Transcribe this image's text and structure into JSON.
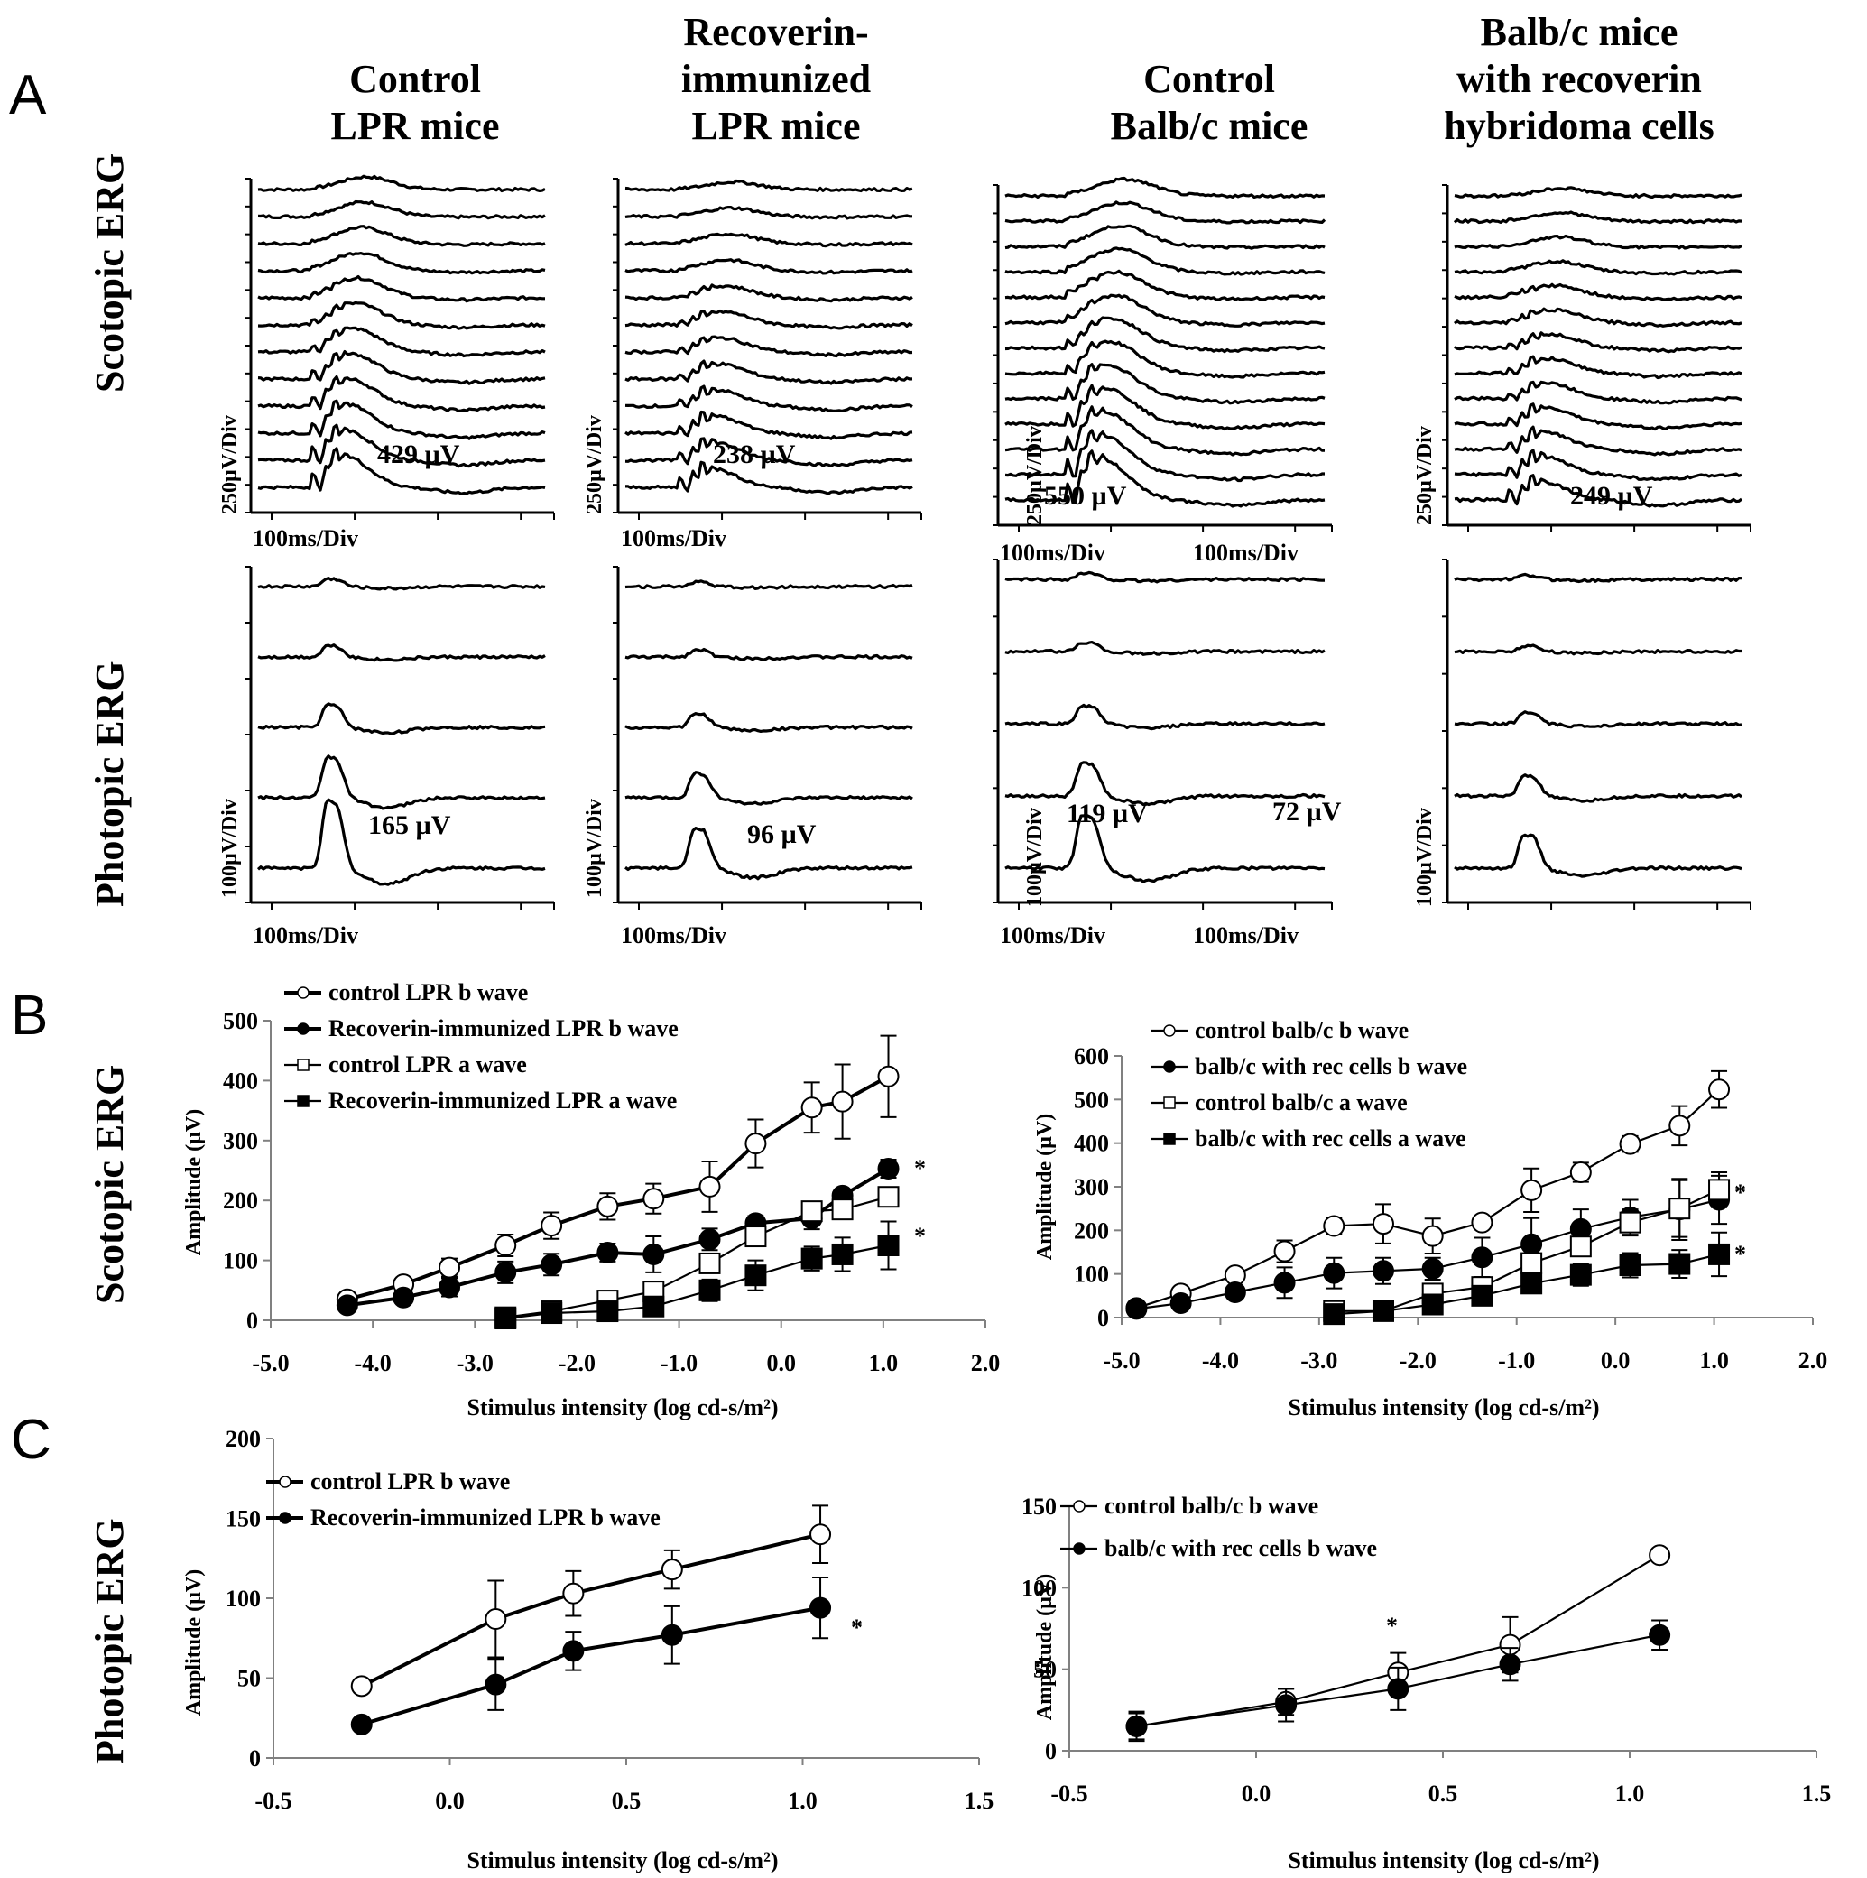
{
  "panels": {
    "A": "A",
    "B": "B",
    "C": "C"
  },
  "row_labels": {
    "scotopic": "Scotopic ERG",
    "photopic": "Photopic ERG"
  },
  "columns": [
    {
      "title_lines": [
        "Control",
        "LPR mice"
      ],
      "scotopic_amp": "429 µV",
      "photopic_amp": "165 µV"
    },
    {
      "title_lines": [
        "Recoverin-",
        "immunized",
        "LPR mice"
      ],
      "scotopic_amp": "238 µV",
      "photopic_amp": "96 µV"
    },
    {
      "title_lines": [
        "Control",
        "Balb/c mice"
      ],
      "scotopic_amp": "550 µV",
      "photopic_amp": "119 µV"
    },
    {
      "title_lines": [
        "Balb/c mice",
        "with recoverin",
        "hybridoma cells"
      ],
      "scotopic_amp": "249 µV",
      "photopic_amp": "72 µV"
    }
  ],
  "scales": {
    "scotopic_v": "250µV/Div",
    "photopic_v": "100µV/Div",
    "time": "100ms/Div"
  },
  "colors": {
    "ink": "#000000",
    "axis": "#808080",
    "bg": "#ffffff"
  },
  "chart_data": [
    {
      "id": "B-left",
      "type": "line",
      "title": "",
      "xlabel": "Stimulus intensity (log cd-s/m²)",
      "ylabel": "Amplitude (µV)",
      "xlim": [
        -5.0,
        2.0
      ],
      "ylim": [
        0,
        500
      ],
      "xticks": [
        "-5.0",
        "-4.0",
        "-3.0",
        "-2.0",
        "-1.0",
        "0.0",
        "1.0",
        "2.0"
      ],
      "yticks": [
        "0",
        "100",
        "200",
        "300",
        "400",
        "500"
      ],
      "legend_position": "top-left",
      "annotations": [
        "*",
        "*"
      ],
      "series": [
        {
          "name": "control LPR b wave",
          "marker": "open-circle",
          "weight": "thick",
          "x": [
            -4.25,
            -3.7,
            -3.25,
            -2.7,
            -2.25,
            -1.7,
            -1.25,
            -0.7,
            -0.25,
            0.3,
            0.6,
            1.05
          ],
          "y": [
            35,
            60,
            88,
            125,
            158,
            190,
            203,
            223,
            295,
            355,
            365,
            407
          ],
          "err": [
            5,
            6,
            15,
            18,
            22,
            22,
            25,
            42,
            40,
            42,
            62,
            68
          ]
        },
        {
          "name": "Recoverin-immunized LPR b wave",
          "marker": "filled-circle",
          "weight": "thick",
          "x": [
            -4.25,
            -3.7,
            -3.25,
            -2.7,
            -2.25,
            -1.7,
            -1.25,
            -0.7,
            -0.25,
            0.3,
            0.6,
            1.05
          ],
          "y": [
            25,
            38,
            55,
            80,
            93,
            113,
            110,
            135,
            162,
            170,
            208,
            253
          ],
          "err": [
            5,
            5,
            15,
            18,
            18,
            15,
            30,
            18,
            12,
            18,
            10,
            15
          ]
        },
        {
          "name": "control LPR a wave",
          "marker": "open-square",
          "weight": "thin",
          "x": [
            -2.7,
            -2.25,
            -1.7,
            -1.25,
            -0.7,
            -0.25,
            0.3,
            0.6,
            1.05
          ],
          "y": [
            5,
            15,
            33,
            48,
            95,
            140,
            182,
            185,
            206
          ],
          "err": [
            3,
            3,
            5,
            6,
            12,
            15,
            10,
            10,
            10
          ]
        },
        {
          "name": "Recoverin-immunized LPR a wave",
          "marker": "filled-square",
          "weight": "thin",
          "x": [
            -2.7,
            -2.25,
            -1.7,
            -1.25,
            -0.7,
            -0.25,
            0.3,
            0.6,
            1.05
          ],
          "y": [
            3,
            12,
            15,
            23,
            50,
            75,
            103,
            110,
            125
          ],
          "err": [
            3,
            3,
            5,
            8,
            18,
            25,
            20,
            28,
            40
          ]
        }
      ]
    },
    {
      "id": "B-right",
      "type": "line",
      "title": "",
      "xlabel": "Stimulus intensity (log cd-s/m²)",
      "ylabel": "Amplitude (µV)",
      "xlim": [
        -5.0,
        2.0
      ],
      "ylim": [
        0,
        600
      ],
      "xticks": [
        "-5.0",
        "-4.0",
        "-3.0",
        "-2.0",
        "-1.0",
        "0.0",
        "1.0",
        "2.0"
      ],
      "yticks": [
        "0",
        "100",
        "200",
        "300",
        "400",
        "500",
        "600"
      ],
      "legend_position": "top",
      "annotations": [
        "*",
        "*"
      ],
      "series": [
        {
          "name": "control balb/c b wave",
          "marker": "open-circle",
          "weight": "thin",
          "x": [
            -4.85,
            -4.4,
            -3.85,
            -3.35,
            -2.85,
            -2.35,
            -1.85,
            -1.35,
            -0.85,
            -0.35,
            0.15,
            0.65,
            1.05
          ],
          "y": [
            22,
            55,
            97,
            152,
            210,
            215,
            187,
            218,
            292,
            333,
            398,
            440,
            523
          ],
          "err": [
            5,
            5,
            5,
            25,
            18,
            45,
            40,
            5,
            50,
            22,
            18,
            45,
            42
          ]
        },
        {
          "name": "balb/c with rec cells b wave",
          "marker": "filled-circle",
          "weight": "thin",
          "x": [
            -4.85,
            -4.4,
            -3.85,
            -3.35,
            -2.85,
            -2.35,
            -1.85,
            -1.35,
            -0.85,
            -0.35,
            0.15,
            0.65,
            1.05
          ],
          "y": [
            20,
            33,
            58,
            80,
            102,
            107,
            112,
            138,
            168,
            203,
            230,
            248,
            270
          ],
          "err": [
            5,
            5,
            15,
            35,
            35,
            30,
            25,
            45,
            60,
            45,
            40,
            70,
            55
          ]
        },
        {
          "name": "control balb/c a wave",
          "marker": "open-square",
          "weight": "thin",
          "x": [
            -2.85,
            -2.35,
            -1.85,
            -1.35,
            -0.85,
            -0.35,
            0.15,
            0.65,
            1.05
          ],
          "y": [
            15,
            15,
            55,
            70,
            125,
            163,
            218,
            250,
            293
          ],
          "err": [
            5,
            5,
            5,
            10,
            15,
            20,
            30,
            65,
            40
          ]
        },
        {
          "name": "balb/c with rec cells a wave",
          "marker": "filled-square",
          "weight": "thin",
          "x": [
            -2.85,
            -2.35,
            -1.85,
            -1.35,
            -0.85,
            -0.35,
            0.15,
            0.65,
            1.05
          ],
          "y": [
            8,
            15,
            30,
            50,
            78,
            98,
            120,
            123,
            145
          ],
          "err": [
            5,
            5,
            8,
            10,
            10,
            25,
            28,
            32,
            50
          ]
        }
      ]
    },
    {
      "id": "C-left",
      "type": "line",
      "title": "",
      "xlabel": "Stimulus intensity (log cd-s/m²)",
      "ylabel": "Amplitude (µV)",
      "xlim": [
        -0.5,
        1.5
      ],
      "ylim": [
        0,
        200
      ],
      "xticks": [
        "-0.5",
        "0.0",
        "0.5",
        "1.0",
        "1.5"
      ],
      "yticks": [
        "0",
        "50",
        "100",
        "150",
        "200"
      ],
      "legend_position": "top-left",
      "annotations": [
        "*"
      ],
      "series": [
        {
          "name": "control LPR b wave",
          "marker": "open-circle",
          "weight": "thick",
          "x": [
            -0.25,
            0.13,
            0.35,
            0.63,
            1.05
          ],
          "y": [
            45,
            87,
            103,
            118,
            140
          ],
          "err": [
            4,
            24,
            14,
            12,
            18
          ]
        },
        {
          "name": "Recoverin-immunized LPR b wave",
          "marker": "filled-circle",
          "weight": "thick",
          "x": [
            -0.25,
            0.13,
            0.35,
            0.63,
            1.05
          ],
          "y": [
            21,
            46,
            67,
            77,
            94
          ],
          "err": [
            2,
            16,
            12,
            18,
            19
          ]
        }
      ]
    },
    {
      "id": "C-right",
      "type": "line",
      "title": "",
      "xlabel": "Stimulus intensity (log cd-s/m²)",
      "ylabel": "Amplitude (µV)",
      "xlim": [
        -0.5,
        1.5
      ],
      "ylim": [
        0,
        150
      ],
      "xticks": [
        "-0.5",
        "0.0",
        "0.5",
        "1.0",
        "1.5"
      ],
      "yticks": [
        "0",
        "50",
        "100",
        "150"
      ],
      "legend_position": "top",
      "annotations": [
        "*"
      ],
      "series": [
        {
          "name": "control balb/c b wave",
          "marker": "open-circle",
          "weight": "thin",
          "x": [
            -0.32,
            0.08,
            0.38,
            0.68,
            1.08
          ],
          "y": [
            15,
            30,
            48,
            65,
            120
          ],
          "err": [
            8,
            8,
            12,
            17,
            0
          ]
        },
        {
          "name": "balb/c with rec cells b wave",
          "marker": "filled-circle",
          "weight": "thin",
          "x": [
            -0.32,
            0.08,
            0.38,
            0.68,
            1.08
          ],
          "y": [
            15,
            28,
            38,
            53,
            71
          ],
          "err": [
            9,
            10,
            13,
            10,
            9
          ]
        }
      ]
    }
  ]
}
